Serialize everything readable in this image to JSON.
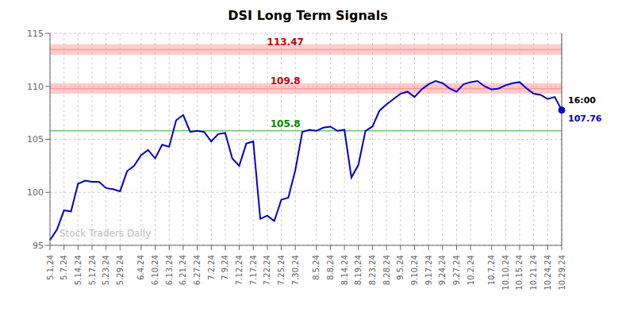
{
  "chart_data": {
    "type": "line",
    "title": "DSI Long Term Signals",
    "categories": [
      "5.1.24",
      null,
      "5.7.24",
      null,
      "5.14.24",
      null,
      "5.17.24",
      null,
      "5.23.24",
      null,
      "5.29.24",
      null,
      null,
      "6.4.24",
      null,
      "6.10.24",
      null,
      "6.13.24",
      null,
      "6.21.24",
      null,
      "6.27.24",
      null,
      "7.2.24",
      null,
      "7.9.24",
      null,
      "7.12.24",
      null,
      "7.17.24",
      null,
      "7.22.24",
      null,
      "7.25.24",
      null,
      "7.30.24",
      null,
      null,
      "8.5.24",
      null,
      "8.8.24",
      null,
      "8.14.24",
      null,
      "8.19.24",
      null,
      "8.23.24",
      null,
      "8.28.24",
      null,
      "9.5.24",
      null,
      "9.10.24",
      null,
      "9.17.24",
      null,
      "9.24.24",
      null,
      "9.27.24",
      null,
      "10.2.24",
      null,
      null,
      "10.7.24",
      null,
      "10.10.24",
      null,
      "10.15.24",
      null,
      "10.21.24",
      null,
      "10.24.24",
      null,
      "10.29.24"
    ],
    "values": [
      95.5,
      96.5,
      98.3,
      98.2,
      100.8,
      101.1,
      101.0,
      101.0,
      100.4,
      100.3,
      100.1,
      102.0,
      102.5,
      103.5,
      104.0,
      103.2,
      104.5,
      104.3,
      106.8,
      107.3,
      105.7,
      105.8,
      105.7,
      104.8,
      105.5,
      105.6,
      103.2,
      102.5,
      104.6,
      104.8,
      97.5,
      97.8,
      97.3,
      99.3,
      99.5,
      102.1,
      105.7,
      105.9,
      105.8,
      106.1,
      106.2,
      105.8,
      105.9,
      101.4,
      102.6,
      105.8,
      106.2,
      107.7,
      108.3,
      108.8,
      109.3,
      109.5,
      109.0,
      109.7,
      110.2,
      110.5,
      110.3,
      109.8,
      109.5,
      110.2,
      110.4,
      110.5,
      110.0,
      109.7,
      109.8,
      110.1,
      110.3,
      110.4,
      109.8,
      109.3,
      109.2,
      108.8,
      109.0,
      107.76
    ],
    "color": "#0000cc",
    "ylim": [
      95,
      115
    ],
    "yticks": [
      95,
      100,
      105,
      110,
      115
    ],
    "grid": true,
    "reference_lines": [
      {
        "value": 113.47,
        "label": "113.47",
        "color": "#ff9999",
        "label_color": "#cc0000",
        "band": [
          112.97,
          113.97
        ]
      },
      {
        "value": 109.8,
        "label": "109.8",
        "color": "#ff9999",
        "label_color": "#cc0000",
        "band": [
          109.3,
          110.3
        ]
      },
      {
        "value": 105.8,
        "label": "105.8",
        "color": "#66cc66",
        "label_color": "#008800"
      }
    ],
    "last_point": {
      "value": 107.76,
      "label": "16:00",
      "value_label": "107.76",
      "color": "#0000cc",
      "line_color": "#555555"
    },
    "watermark": {
      "text": "Stock Traders Daily",
      "color": "#bbbbbb"
    }
  }
}
